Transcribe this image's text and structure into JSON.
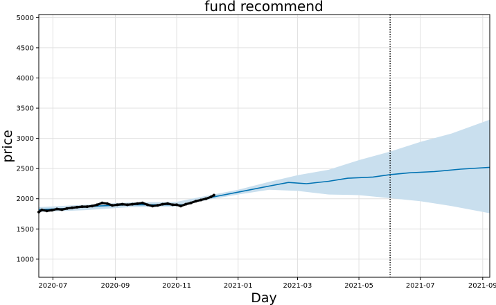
{
  "chart_data": {
    "type": "line",
    "title": "fund recommend",
    "xlabel": "Day",
    "ylabel": "price",
    "x_range": [
      "2020-06-17",
      "2021-09-08"
    ],
    "ylim": [
      700,
      5050
    ],
    "grid": true,
    "x_ticks": [
      "2020-07",
      "2020-09",
      "2020-11",
      "2021-01",
      "2021-03",
      "2021-05",
      "2021-07",
      "2021-09"
    ],
    "y_ticks": [
      1000,
      1500,
      2000,
      2500,
      3000,
      3500,
      4000,
      4500,
      5000
    ],
    "changepoint_line": "2021-06-01",
    "colors": {
      "forecast": "#0072b2",
      "band": "#c9dfee",
      "observed": "#000000",
      "grid": "#e0e0e0"
    },
    "series": [
      {
        "role": "observed",
        "x": [
          "2020-06-17",
          "2020-06-20",
          "2020-06-25",
          "2020-06-30",
          "2020-07-05",
          "2020-07-10",
          "2020-07-15",
          "2020-07-20",
          "2020-07-25",
          "2020-07-30",
          "2020-08-04",
          "2020-08-09",
          "2020-08-14",
          "2020-08-19",
          "2020-08-24",
          "2020-08-29",
          "2020-09-03",
          "2020-09-08",
          "2020-09-13",
          "2020-09-18",
          "2020-09-23",
          "2020-09-28",
          "2020-10-03",
          "2020-10-08",
          "2020-10-13",
          "2020-10-18",
          "2020-10-23",
          "2020-10-28",
          "2020-11-01",
          "2020-11-05",
          "2020-11-10",
          "2020-11-15",
          "2020-11-20",
          "2020-11-25",
          "2020-11-30",
          "2020-12-05",
          "2020-12-08"
        ],
        "y": [
          1780,
          1815,
          1800,
          1810,
          1830,
          1820,
          1840,
          1850,
          1860,
          1870,
          1870,
          1880,
          1900,
          1930,
          1920,
          1890,
          1900,
          1910,
          1900,
          1910,
          1920,
          1930,
          1900,
          1880,
          1890,
          1910,
          1920,
          1900,
          1900,
          1880,
          1910,
          1930,
          1960,
          1980,
          2000,
          2030,
          2060
        ]
      },
      {
        "role": "forecast",
        "x": [
          "2020-06-17",
          "2020-07-15",
          "2020-08-15",
          "2020-09-15",
          "2020-10-15",
          "2020-11-10",
          "2020-12-01",
          "2021-01-01",
          "2021-02-01",
          "2021-02-20",
          "2021-03-10",
          "2021-04-01",
          "2021-04-20",
          "2021-05-15",
          "2021-06-01",
          "2021-06-20",
          "2021-07-15",
          "2021-08-10",
          "2021-09-08"
        ],
        "y": [
          1820,
          1840,
          1880,
          1900,
          1900,
          1900,
          2010,
          2110,
          2210,
          2270,
          2250,
          2290,
          2340,
          2360,
          2400,
          2430,
          2450,
          2490,
          2520
        ]
      },
      {
        "role": "uncertainty",
        "x": [
          "2020-06-17",
          "2020-08-01",
          "2020-09-15",
          "2020-11-01",
          "2020-12-01",
          "2021-01-01",
          "2021-02-01",
          "2021-03-01",
          "2021-04-01",
          "2021-05-01",
          "2021-06-01",
          "2021-07-01",
          "2021-08-01",
          "2021-09-08"
        ],
        "upper": [
          1860,
          1900,
          1940,
          1950,
          2050,
          2150,
          2280,
          2390,
          2480,
          2640,
          2780,
          2940,
          3080,
          3310
        ],
        "lower": [
          1780,
          1810,
          1860,
          1870,
          1980,
          2070,
          2150,
          2130,
          2070,
          2060,
          2010,
          1960,
          1880,
          1760
        ]
      }
    ]
  }
}
